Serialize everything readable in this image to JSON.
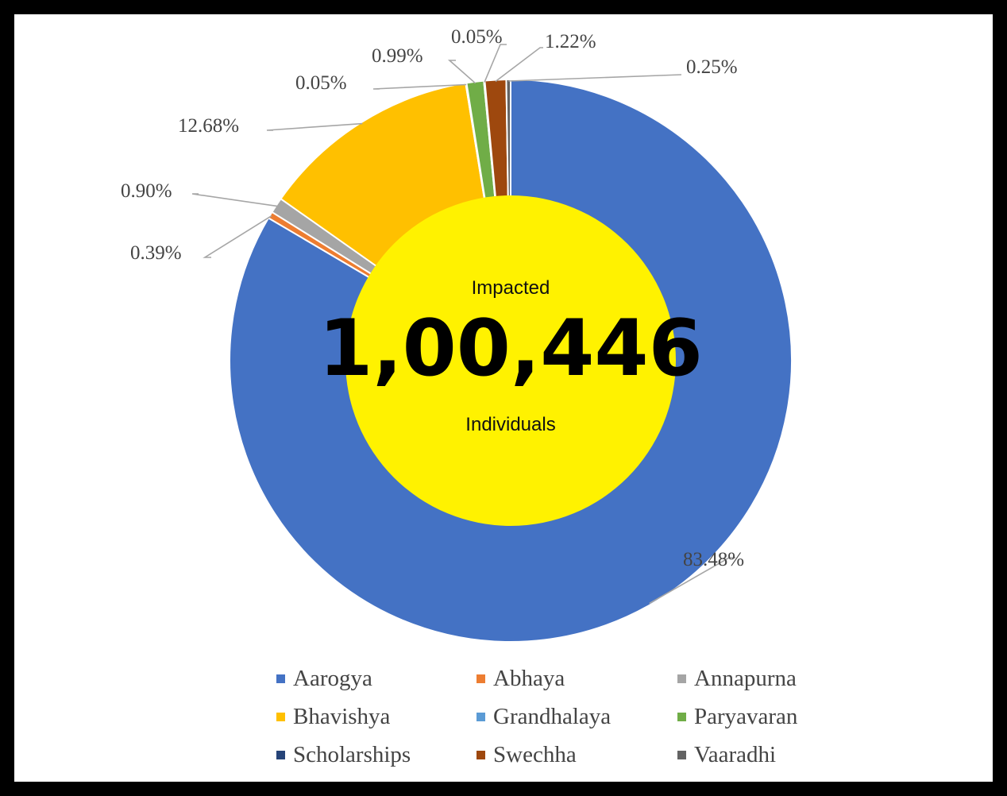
{
  "chart_data": {
    "type": "pie",
    "donut": true,
    "categories": [
      "Aarogya",
      "Abhaya",
      "Annapurna",
      "Bhavishya",
      "Grandhalaya",
      "Paryavaran",
      "Scholarships",
      "Swechha",
      "Vaaradhi"
    ],
    "values": [
      83.48,
      0.39,
      0.9,
      12.68,
      0.05,
      0.99,
      0.05,
      1.22,
      0.25
    ],
    "labels": [
      "83.48%",
      "0.39%",
      "0.90%",
      "12.68%",
      "0.05%",
      "0.99%",
      "0.05%",
      "1.22%",
      "0.25%"
    ],
    "colors": [
      "#4472C4",
      "#ED7D31",
      "#A5A5A5",
      "#FFC000",
      "#5B9BD5",
      "#70AD47",
      "#264478",
      "#9E480E",
      "#636363"
    ],
    "legend_position": "bottom",
    "center": {
      "top_text": "Impacted",
      "value": "1,00,446",
      "bottom_text": "Individuals",
      "fill": "#FFF200"
    }
  }
}
